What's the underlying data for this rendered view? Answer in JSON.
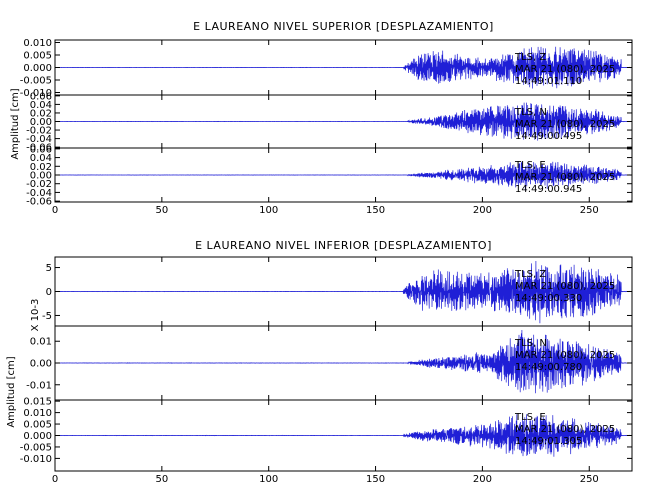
{
  "chart_data": [
    {
      "type": "line",
      "title": "E LAUREANO NIVEL SUPERIOR [DESPLAZAMIENTO]",
      "ylabel": "Amplitud [cm]",
      "xlim": [
        0,
        270
      ],
      "xticks": [
        0,
        50,
        100,
        150,
        200,
        250
      ],
      "panels": [
        {
          "channel": "Z",
          "annotation": [
            "TLS, Z",
            "MAR 21 (080), 2025",
            "14:49:01.110"
          ],
          "ylim": [
            -0.011,
            0.011
          ],
          "ytick_labels": [
            "0.010",
            "0.005",
            "0.000",
            "-0.005",
            "-0.010"
          ],
          "ytick_values": [
            0.01,
            0.005,
            0.0,
            -0.005,
            -0.01
          ],
          "onset": 163,
          "end": 265,
          "envelope": [
            [
              163,
              0.0006
            ],
            [
              170,
              0.0055
            ],
            [
              180,
              0.0065
            ],
            [
              190,
              0.005
            ],
            [
              200,
              0.004
            ],
            [
              210,
              0.0055
            ],
            [
              220,
              0.0075
            ],
            [
              230,
              0.008
            ],
            [
              240,
              0.0075
            ],
            [
              250,
              0.0065
            ],
            [
              260,
              0.005
            ],
            [
              265,
              0.004
            ]
          ]
        },
        {
          "channel": "N",
          "annotation": [
            "TLS, N",
            "MAR 21 (080), 2025",
            "14:49:00.495"
          ],
          "ylim": [
            -0.062,
            0.062
          ],
          "ytick_labels": [
            "0.06",
            "0.04",
            "0.02",
            "0.00",
            "-0.02",
            "-0.04",
            "-0.06"
          ],
          "ytick_values": [
            0.06,
            0.04,
            0.02,
            0.0,
            -0.02,
            -0.04,
            -0.06
          ],
          "onset": 165,
          "end": 265,
          "envelope": [
            [
              165,
              0.002
            ],
            [
              175,
              0.01
            ],
            [
              185,
              0.02
            ],
            [
              195,
              0.028
            ],
            [
              205,
              0.035
            ],
            [
              215,
              0.04
            ],
            [
              222,
              0.045
            ],
            [
              230,
              0.04
            ],
            [
              240,
              0.035
            ],
            [
              250,
              0.03
            ],
            [
              260,
              0.02
            ],
            [
              265,
              0.012
            ]
          ]
        },
        {
          "channel": "E",
          "annotation": [
            "TLS, E",
            "MAR 21 (080), 2025",
            "14:49:00.945"
          ],
          "ylim": [
            -0.062,
            0.062
          ],
          "ytick_labels": [
            "0.06",
            "0.04",
            "0.02",
            "0.00",
            "-0.02",
            "-0.04",
            "-0.06"
          ],
          "ytick_values": [
            0.06,
            0.04,
            0.02,
            0.0,
            -0.02,
            -0.04,
            -0.06
          ],
          "onset": 165,
          "end": 265,
          "envelope": [
            [
              165,
              0.002
            ],
            [
              175,
              0.006
            ],
            [
              185,
              0.012
            ],
            [
              195,
              0.018
            ],
            [
              205,
              0.022
            ],
            [
              215,
              0.028
            ],
            [
              222,
              0.035
            ],
            [
              230,
              0.03
            ],
            [
              240,
              0.025
            ],
            [
              250,
              0.022
            ],
            [
              260,
              0.015
            ],
            [
              265,
              0.01
            ]
          ]
        }
      ]
    },
    {
      "type": "line",
      "title": "E LAUREANO NIVEL INFERIOR [DESPLAZAMIENTO]",
      "ylabel": "Amplitud [cm]",
      "xlim": [
        0,
        270
      ],
      "xticks": [
        0,
        50,
        100,
        150,
        200,
        250
      ],
      "panels": [
        {
          "channel": "Z",
          "annotation": [
            "TLS, Z",
            "MAR 21 (080), 2025",
            "14:49:00.330"
          ],
          "scale_label": "X 10-3",
          "ylim": [
            -7.2,
            7.2
          ],
          "ytick_labels": [
            "5",
            "0",
            "-5"
          ],
          "ytick_values": [
            5,
            0,
            -5
          ],
          "onset": 163,
          "end": 265,
          "envelope": [
            [
              163,
              0.5
            ],
            [
              170,
              3.5
            ],
            [
              180,
              4.5
            ],
            [
              190,
              4.0
            ],
            [
              200,
              3.5
            ],
            [
              210,
              4.5
            ],
            [
              220,
              5.5
            ],
            [
              230,
              6.5
            ],
            [
              240,
              5.5
            ],
            [
              250,
              5.0
            ],
            [
              260,
              4.0
            ],
            [
              265,
              3.0
            ]
          ]
        },
        {
          "channel": "N",
          "annotation": [
            "TLS, N",
            "MAR 21 (080), 2025",
            "14:49:00.780"
          ],
          "ylim": [
            -0.017,
            0.017
          ],
          "ytick_labels": [
            "0.01",
            "0.00",
            "-0.01"
          ],
          "ytick_values": [
            0.01,
            0.0,
            -0.01
          ],
          "onset": 165,
          "end": 265,
          "envelope": [
            [
              165,
              0.0005
            ],
            [
              175,
              0.002
            ],
            [
              185,
              0.003
            ],
            [
              195,
              0.004
            ],
            [
              205,
              0.006
            ],
            [
              212,
              0.01
            ],
            [
              220,
              0.015
            ],
            [
              230,
              0.013
            ],
            [
              240,
              0.011
            ],
            [
              250,
              0.009
            ],
            [
              260,
              0.006
            ],
            [
              265,
              0.004
            ]
          ]
        },
        {
          "channel": "E",
          "annotation": [
            "TLS, E",
            "MAR 21 (080), 2025",
            "14:49:01.305"
          ],
          "ylim": [
            -0.0155,
            0.0155
          ],
          "ytick_labels": [
            "0.015",
            "0.010",
            "0.005",
            "0.000",
            "-0.005",
            "-0.010"
          ],
          "ytick_values": [
            0.015,
            0.01,
            0.005,
            0.0,
            -0.005,
            -0.01
          ],
          "onset": 163,
          "end": 265,
          "envelope": [
            [
              163,
              0.0005
            ],
            [
              170,
              0.002
            ],
            [
              180,
              0.003
            ],
            [
              190,
              0.004
            ],
            [
              200,
              0.005
            ],
            [
              210,
              0.007
            ],
            [
              220,
              0.01
            ],
            [
              230,
              0.009
            ],
            [
              240,
              0.008
            ],
            [
              250,
              0.006
            ],
            [
              260,
              0.004
            ],
            [
              265,
              0.003
            ]
          ]
        }
      ]
    }
  ]
}
